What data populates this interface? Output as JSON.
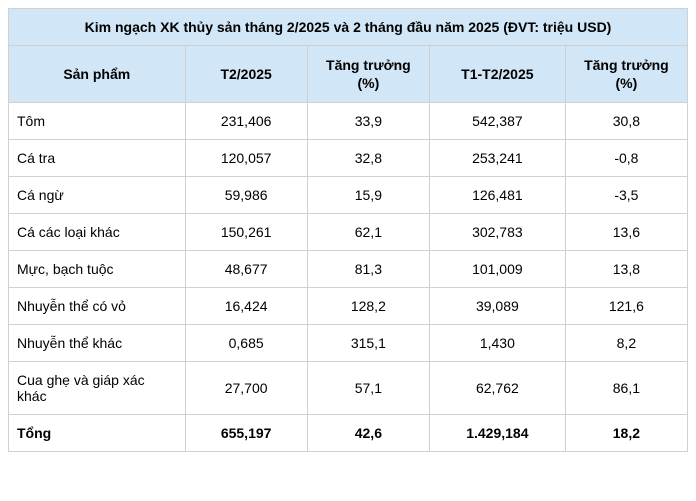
{
  "title": "Kim ngạch XK thủy sản tháng 2/2025 và 2 tháng đầu năm 2025 (ĐVT: triệu USD)",
  "colors": {
    "header_bg": "#d1e6f6",
    "border": "#d0d0d0",
    "row_bg": "#ffffff",
    "text": "#000000"
  },
  "columns": [
    "Sản phẩm",
    "T2/2025",
    "Tăng trưởng (%)",
    "T1-T2/2025",
    "Tăng trưởng (%)"
  ],
  "rows": [
    {
      "label": "Tôm",
      "t2": "231,406",
      "g2": "33,9",
      "t12": "542,387",
      "g12": "30,8"
    },
    {
      "label": "Cá tra",
      "t2": "120,057",
      "g2": "32,8",
      "t12": "253,241",
      "g12": "-0,8"
    },
    {
      "label": "Cá ngừ",
      "t2": "59,986",
      "g2": "15,9",
      "t12": "126,481",
      "g12": "-3,5"
    },
    {
      "label": "Cá các loại khác",
      "t2": "150,261",
      "g2": "62,1",
      "t12": "302,783",
      "g12": "13,6"
    },
    {
      "label": "Mực, bạch tuộc",
      "t2": "48,677",
      "g2": "81,3",
      "t12": "101,009",
      "g12": "13,8"
    },
    {
      "label": "Nhuyễn thể có vỏ",
      "t2": "16,424",
      "g2": "128,2",
      "t12": "39,089",
      "g12": "121,6"
    },
    {
      "label": "Nhuyễn thể khác",
      "t2": "0,685",
      "g2": "315,1",
      "t12": "1,430",
      "g12": "8,2"
    },
    {
      "label": "Cua ghẹ và giáp xác khác",
      "t2": "27,700",
      "g2": "57,1",
      "t12": "62,762",
      "g12": "86,1"
    }
  ],
  "total": {
    "label": "Tổng",
    "t2": "655,197",
    "g2": "42,6",
    "t12": "1.429,184",
    "g12": "18,2"
  }
}
